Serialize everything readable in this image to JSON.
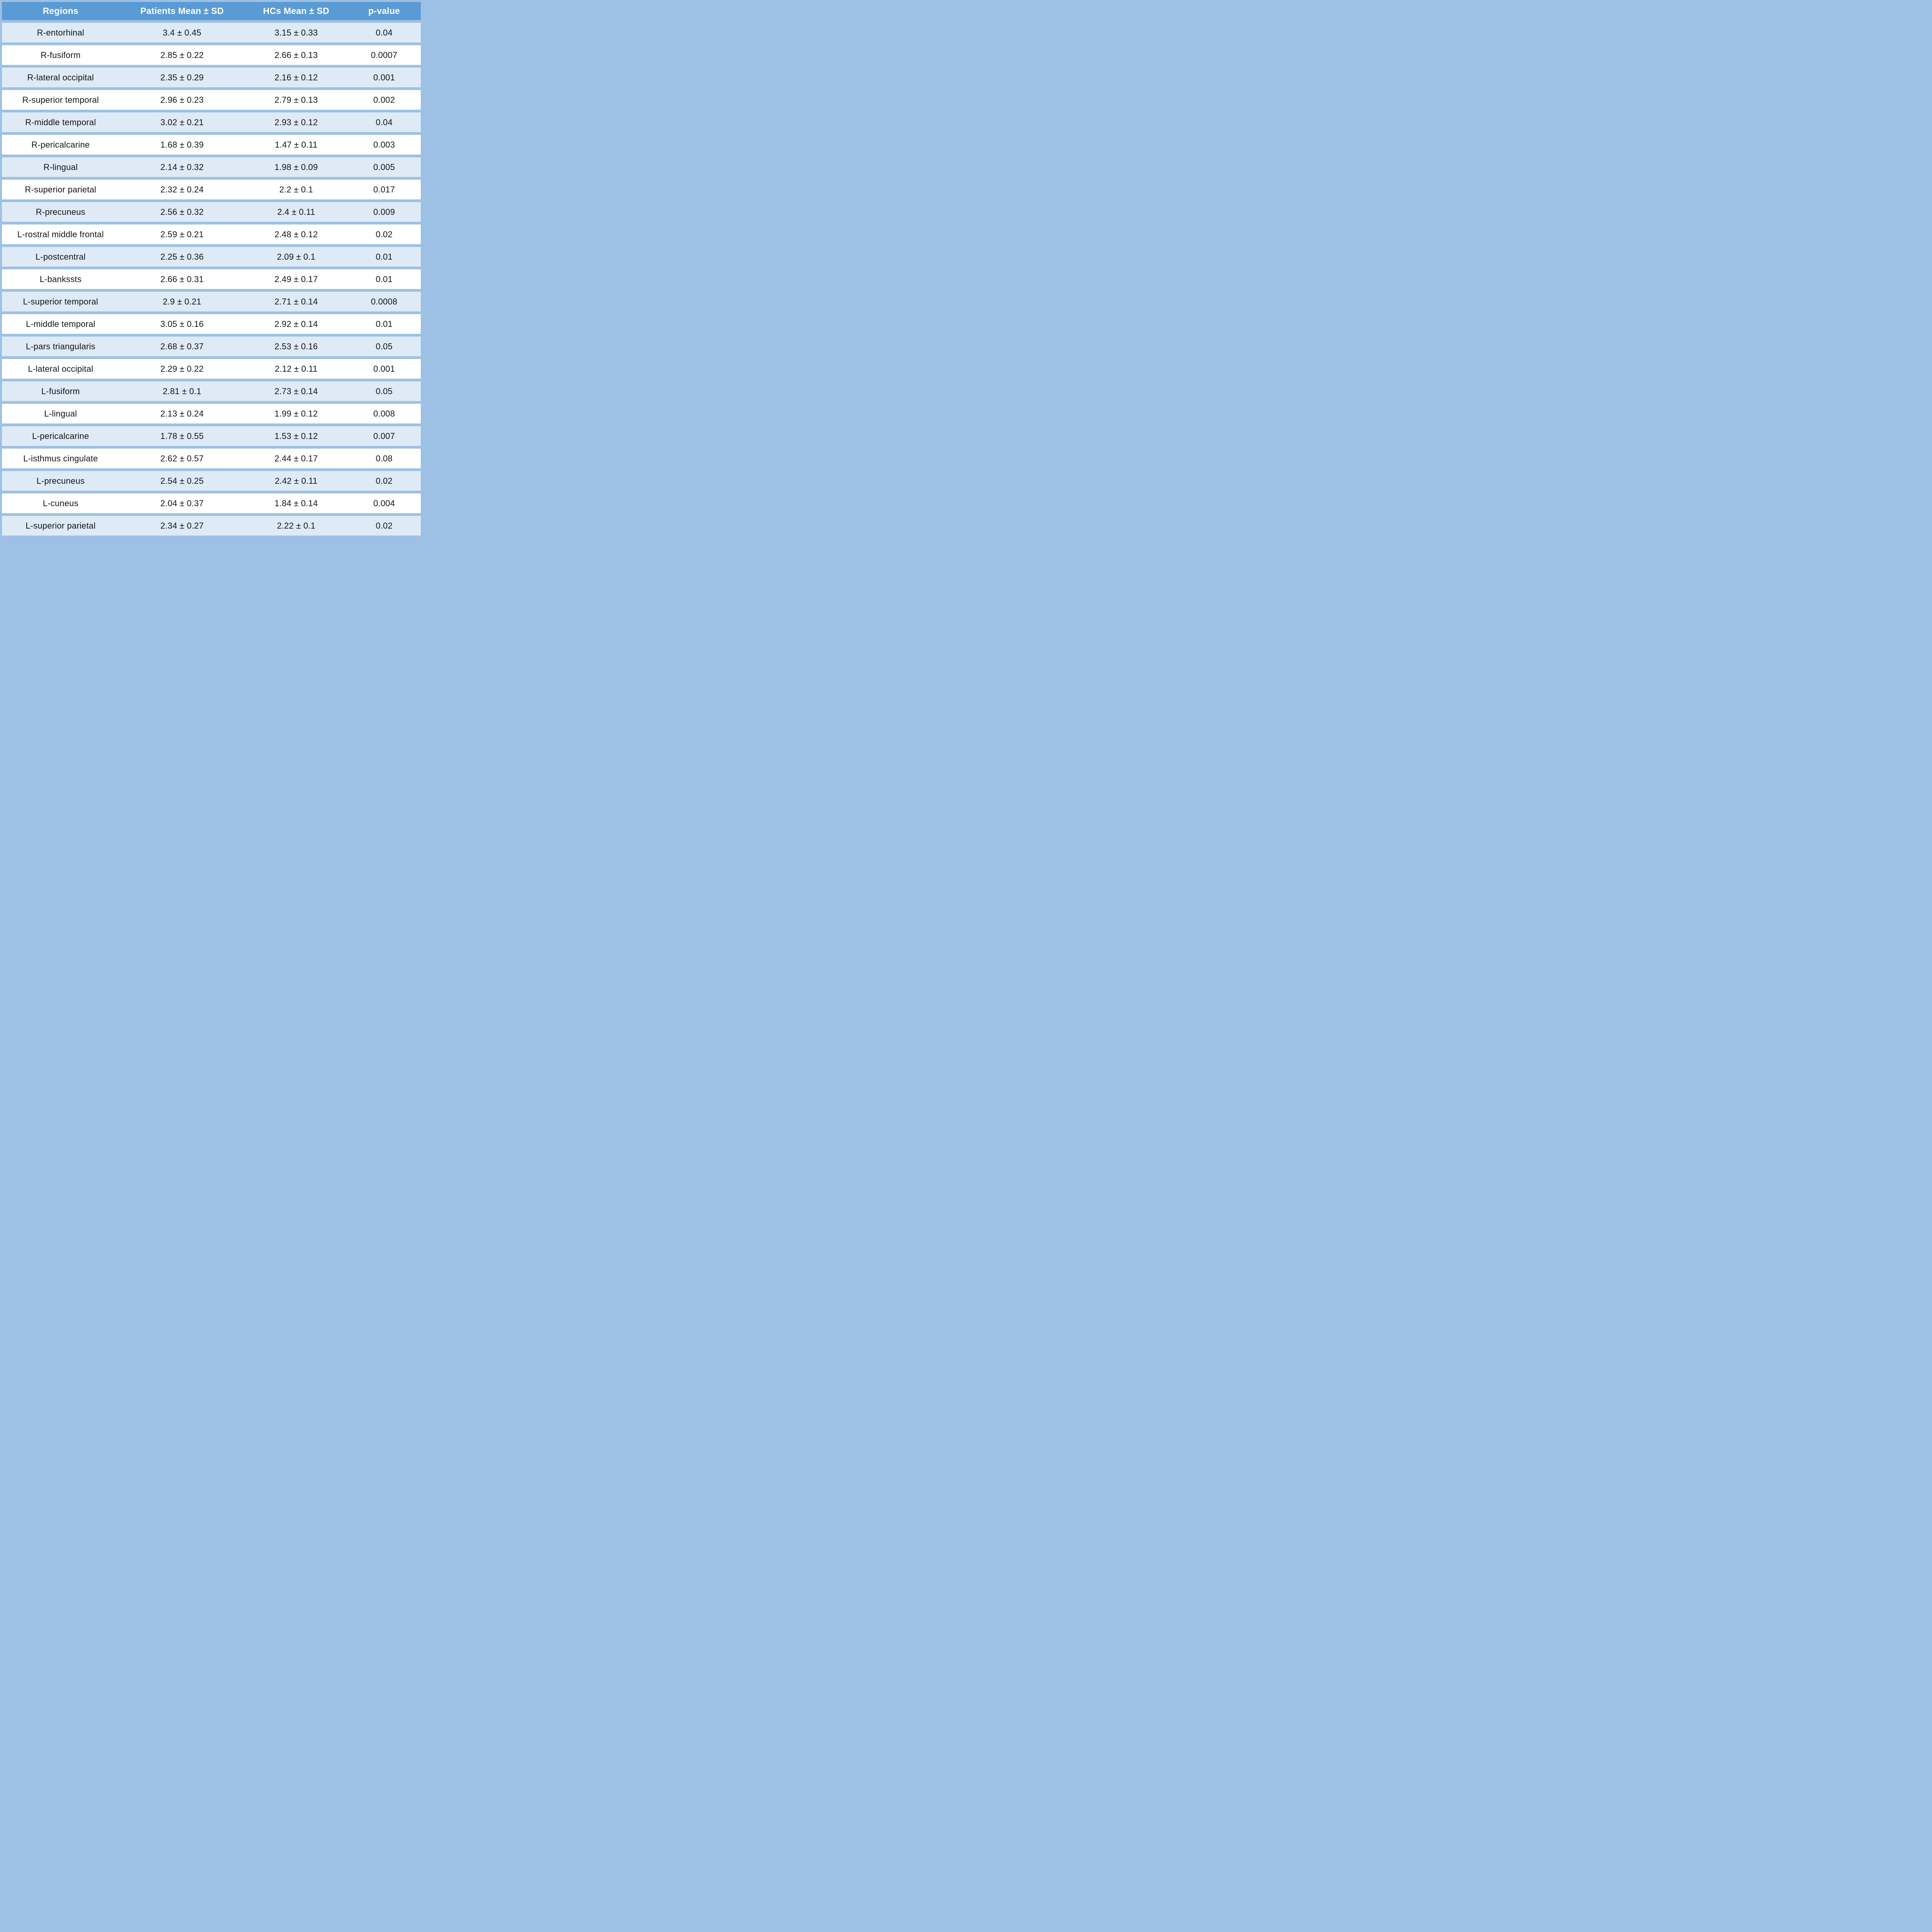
{
  "table": {
    "columns": [
      "Regions",
      "Patients Mean ± SD",
      "HCs Mean ± SD",
      "p-value"
    ],
    "rows": [
      {
        "region": "R-entorhinal",
        "patients": "3.4 ± 0.45",
        "hcs": "3.15 ± 0.33",
        "p": "0.04"
      },
      {
        "region": "R-fusiform",
        "patients": "2.85 ± 0.22",
        "hcs": "2.66 ± 0.13",
        "p": "0.0007"
      },
      {
        "region": "R-lateral occipital",
        "patients": "2.35 ± 0.29",
        "hcs": "2.16 ± 0.12",
        "p": "0.001"
      },
      {
        "region": "R-superior temporal",
        "patients": "2.96 ± 0.23",
        "hcs": "2.79 ± 0.13",
        "p": "0.002"
      },
      {
        "region": "R-middle temporal",
        "patients": "3.02 ± 0.21",
        "hcs": "2.93 ± 0.12",
        "p": "0.04"
      },
      {
        "region": "R-pericalcarine",
        "patients": "1.68 ± 0.39",
        "hcs": "1.47 ± 0.11",
        "p": "0.003"
      },
      {
        "region": "R-lingual",
        "patients": "2.14 ± 0.32",
        "hcs": "1.98 ± 0.09",
        "p": "0.005"
      },
      {
        "region": "R-superior parietal",
        "patients": "2.32 ± 0.24",
        "hcs": "2.2 ± 0.1",
        "p": "0.017"
      },
      {
        "region": "R-precuneus",
        "patients": "2.56 ± 0.32",
        "hcs": "2.4 ± 0.11",
        "p": "0.009"
      },
      {
        "region": "L-rostral middle frontal",
        "patients": "2.59 ± 0.21",
        "hcs": "2.48 ± 0.12",
        "p": "0.02"
      },
      {
        "region": "L-postcentral",
        "patients": "2.25 ± 0.36",
        "hcs": "2.09 ± 0.1",
        "p": "0.01"
      },
      {
        "region": "L-bankssts",
        "patients": "2.66 ± 0.31",
        "hcs": "2.49 ± 0.17",
        "p": "0.01"
      },
      {
        "region": "L-superior temporal",
        "patients": "2.9 ± 0.21",
        "hcs": "2.71 ± 0.14",
        "p": "0.0008"
      },
      {
        "region": "L-middle temporal",
        "patients": "3.05 ± 0.16",
        "hcs": "2.92 ± 0.14",
        "p": "0.01"
      },
      {
        "region": "L-pars triangularis",
        "patients": "2.68 ± 0.37",
        "hcs": "2.53 ± 0.16",
        "p": "0.05"
      },
      {
        "region": "L-lateral occipital",
        "patients": "2.29 ± 0.22",
        "hcs": "2.12 ± 0.11",
        "p": "0.001"
      },
      {
        "region": "L-fusiform",
        "patients": "2.81 ± 0.1",
        "hcs": "2.73 ± 0.14",
        "p": "0.05"
      },
      {
        "region": "L-lingual",
        "patients": "2.13 ± 0.24",
        "hcs": "1.99 ± 0.12",
        "p": "0.008"
      },
      {
        "region": "L-pericalcarine",
        "patients": "1.78 ± 0.55",
        "hcs": "1.53 ± 0.12",
        "p": "0.007"
      },
      {
        "region": "L-isthmus cingulate",
        "patients": "2.62 ± 0.57",
        "hcs": "2.44 ± 0.17",
        "p": "0.08"
      },
      {
        "region": "L-precuneus",
        "patients": "2.54 ± 0.25",
        "hcs": "2.42 ± 0.11",
        "p": "0.02"
      },
      {
        "region": "L-cuneus",
        "patients": "2.04 ± 0.37",
        "hcs": "1.84 ± 0.14",
        "p": "0.004"
      },
      {
        "region": "L-superior parietal",
        "patients": "2.34 ± 0.27",
        "hcs": "2.22 ± 0.1",
        "p": "0.02"
      }
    ]
  },
  "colors": {
    "header_bg": "#5B9BD5",
    "header_text": "#FFFFFF",
    "row_odd_bg": "#DEEAF6",
    "row_even_bg": "#FFFFFF",
    "grid_bg": "#9CC1E5",
    "body_text": "#151515"
  }
}
